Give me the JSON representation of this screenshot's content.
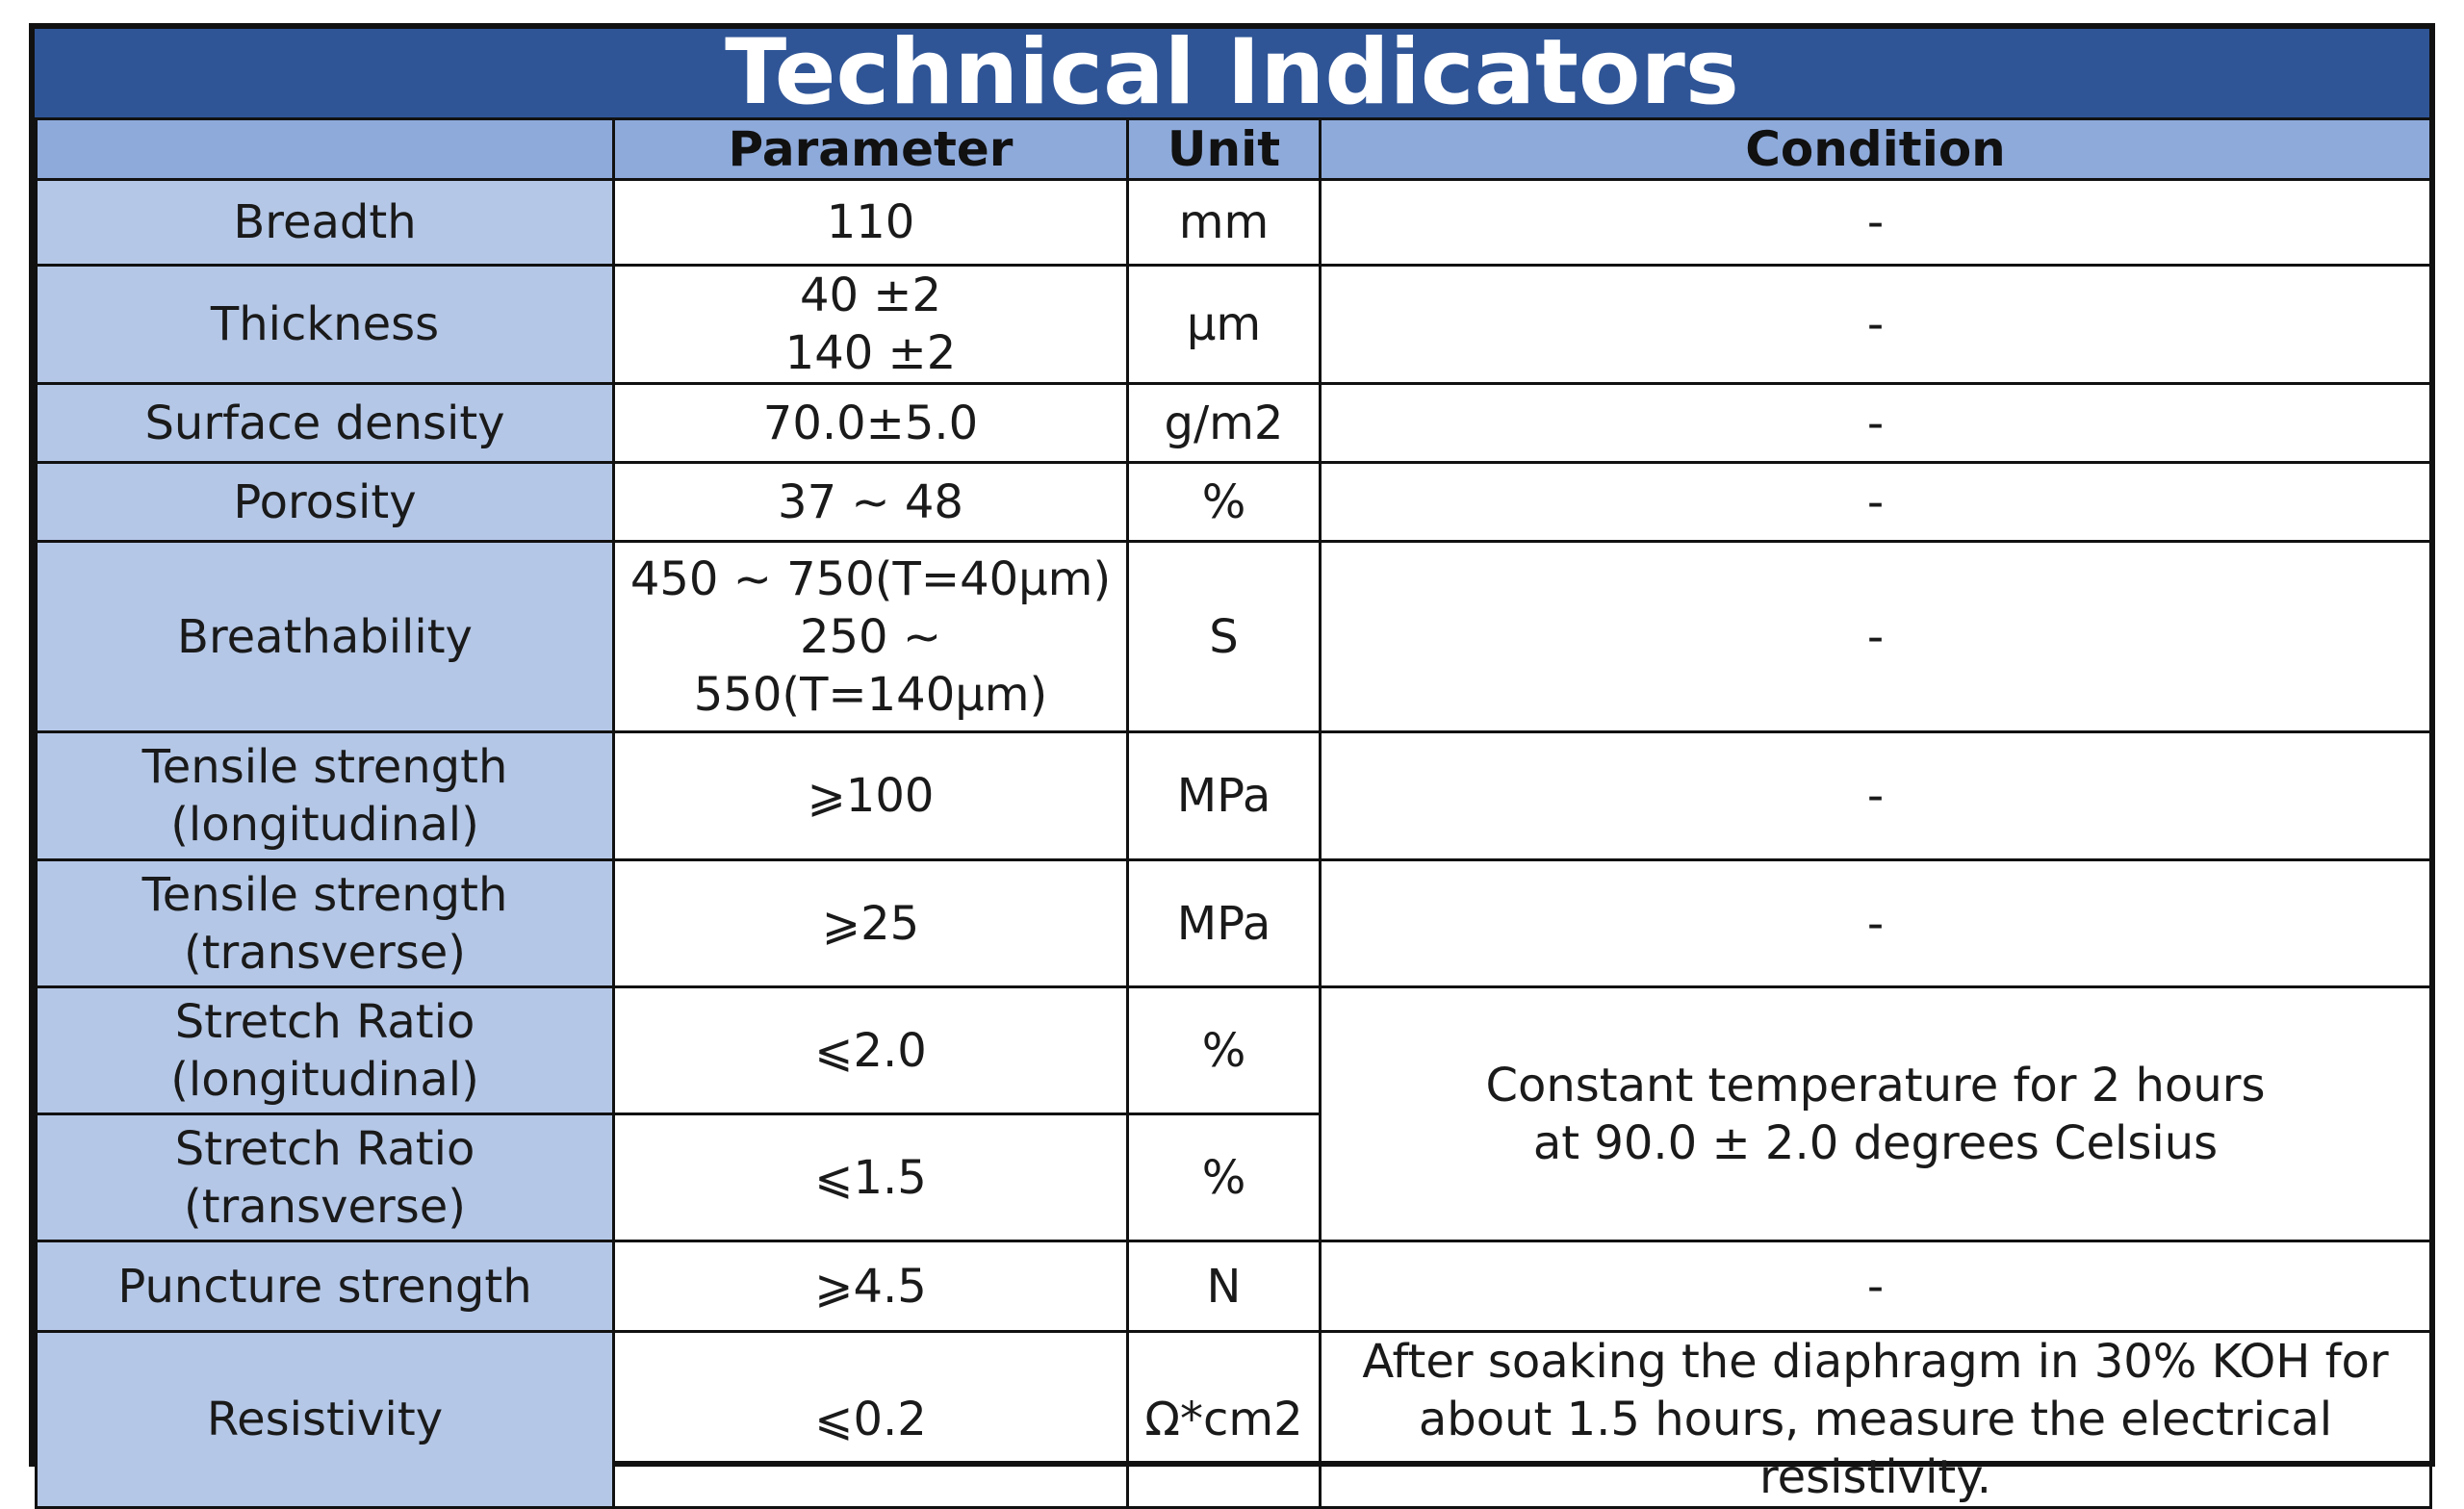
{
  "title": "Technical Indicators",
  "headers": [
    "",
    "Parameter",
    "Unit",
    "Condition"
  ],
  "rows": [
    {
      "label": "Breadth",
      "parameter": "110",
      "unit": "mm",
      "condition": "-"
    },
    {
      "label": "Thickness",
      "parameter": "40 ±2\n140 ±2",
      "unit": "μm",
      "condition": "-"
    },
    {
      "label": "Surface density",
      "parameter": "70.0±5.0",
      "unit": "g/m2",
      "condition": "-"
    },
    {
      "label": "Porosity",
      "parameter": "37 ~ 48",
      "unit": "%",
      "condition": "-"
    },
    {
      "label": "Breathability",
      "parameter": "450 ~ 750(T=40μm)\n250 ~ 550(T=140μm)",
      "unit": "S",
      "condition": "-"
    },
    {
      "label": "Tensile strength\n(longitudinal)",
      "parameter": "⩾100",
      "unit": "MPa",
      "condition": "-"
    },
    {
      "label": "Tensile strength\n(transverse)",
      "parameter": "⩾25",
      "unit": "MPa",
      "condition": "-"
    },
    {
      "label": "Stretch Ratio\n(longitudinal)",
      "parameter": "⩽2.0",
      "unit": "%",
      "condition": "Constant temperature for 2 hours\nat 90.0 ± 2.0 degrees Celsius"
    },
    {
      "label": "Stretch Ratio\n(transverse)",
      "parameter": "⩽1.5",
      "unit": "%"
    },
    {
      "label": "Puncture strength",
      "parameter": "⩾4.5",
      "unit": "N",
      "condition": "-"
    },
    {
      "label": "Resistivity",
      "parameter": "⩽0.2",
      "unit": "Ω*cm2",
      "condition": "After soaking the diaphragm in 30% KOH for\nabout 1.5 hours, measure the electrical resistivity."
    }
  ]
}
